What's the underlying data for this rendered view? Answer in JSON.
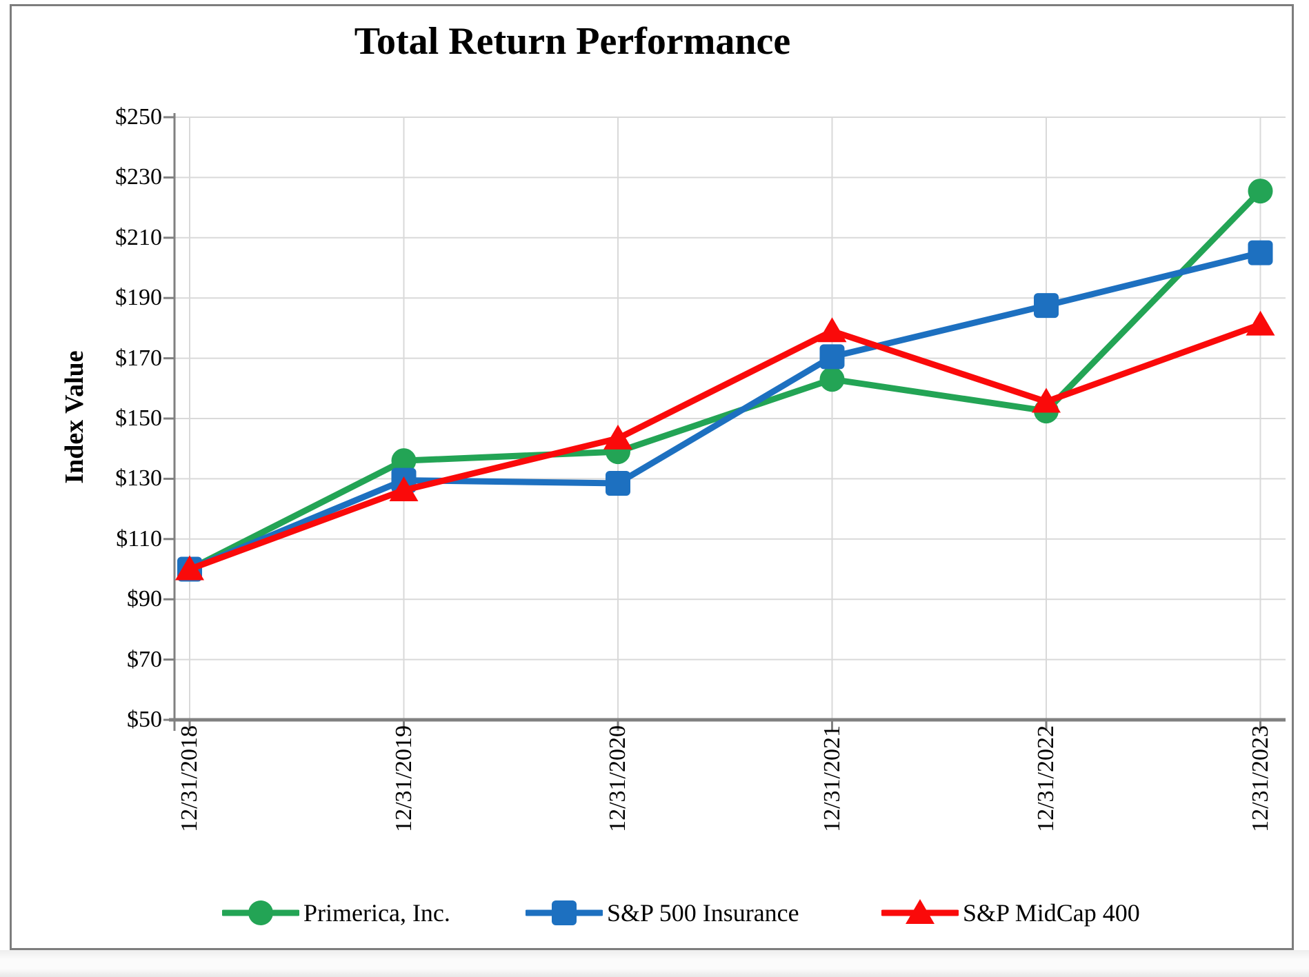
{
  "chart_data": {
    "type": "line",
    "title": "Total Return Performance",
    "ylabel": "Index Value",
    "xlabel": "",
    "categories": [
      "12/31/2018",
      "12/31/2019",
      "12/31/2020",
      "12/31/2021",
      "12/31/2022",
      "12/31/2023"
    ],
    "series": [
      {
        "name": "Primerica, Inc.",
        "marker": "circle",
        "color": "#23A455",
        "values": [
          100,
          136.0,
          139.0,
          163.0,
          152.5,
          225.5
        ]
      },
      {
        "name": "S&P 500 Insurance",
        "marker": "square",
        "color": "#1D70C0",
        "values": [
          100,
          129.5,
          128.5,
          170.5,
          187.5,
          205.0
        ]
      },
      {
        "name": "S&P MidCap 400",
        "marker": "triangle",
        "color": "#FA0A0A",
        "values": [
          100,
          126.2,
          143.4,
          179.0,
          155.6,
          181.2
        ]
      }
    ],
    "ylim": [
      50,
      250
    ],
    "ytick_step": 20,
    "ytick_labels": [
      "$50",
      "$70",
      "$90",
      "$110",
      "$130",
      "$150",
      "$170",
      "$190",
      "$210",
      "$230",
      "$250"
    ],
    "grid": true,
    "legend_position": "bottom"
  },
  "colors": {
    "grid": "#D9D9D9",
    "axis": "#808080",
    "frame": "#7D7D7D",
    "text": "#000000"
  }
}
